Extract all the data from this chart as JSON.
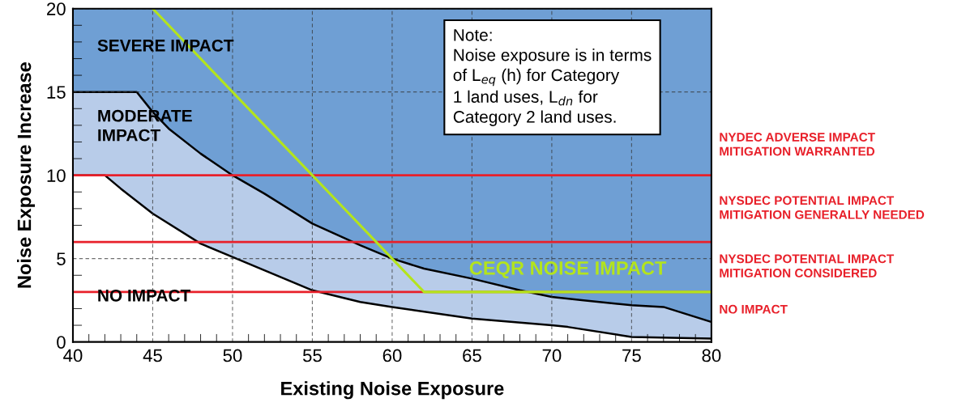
{
  "chart_data": {
    "type": "line",
    "xlabel": "Existing Noise Exposure",
    "ylabel": "Noise Exposure Increase",
    "xlim": [
      40,
      80
    ],
    "ylim": [
      0,
      20
    ],
    "xticks": [
      40,
      45,
      50,
      55,
      60,
      65,
      70,
      75,
      80
    ],
    "yticks": [
      0,
      5,
      10,
      15,
      20
    ],
    "grid": true,
    "series": [
      {
        "type": "area",
        "color": "#ffffff",
        "x": [
          40,
          42,
          43,
          45,
          48,
          50,
          52,
          55,
          58,
          60,
          65,
          70,
          71,
          75,
          80
        ],
        "values": [
          10,
          10,
          9.2,
          7.7,
          5.9,
          5.1,
          4.3,
          3.1,
          2.4,
          2.1,
          1.4,
          1.0,
          0.9,
          0.3,
          0.2
        ]
      },
      {
        "type": "area",
        "color": "#b8cce9",
        "x": [
          40,
          44,
          45,
          46,
          48,
          50,
          52,
          55,
          58,
          60,
          62,
          65,
          68,
          70,
          72,
          75,
          77,
          80
        ],
        "values": [
          15,
          15,
          13.8,
          12.8,
          11.3,
          10.0,
          8.9,
          7.1,
          5.8,
          5.0,
          4.4,
          3.8,
          3.1,
          2.7,
          2.5,
          2.2,
          2.1,
          1.2
        ]
      },
      {
        "name": "CEQR NOISE IMPACT",
        "color": "#b4e41c",
        "x": [
          45,
          62,
          80
        ],
        "values": [
          20,
          3,
          3
        ]
      }
    ],
    "ref_lines": [
      {
        "axis": "y",
        "value": 10,
        "color": "#e8202a"
      },
      {
        "axis": "y",
        "value": 6,
        "color": "#e8202a"
      },
      {
        "axis": "y",
        "value": 3,
        "color": "#e8202a"
      }
    ],
    "annotations": [
      "SEVERE IMPACT",
      "MODERATE\nIMPACT",
      "NO IMPACT",
      "Note:\nNoise exposure is in terms\nof L$_{eq}$ (h) for Category\n1 land uses, L$_{dn}$ for\nCategory 2 land uses.",
      "NYDEC ADVERSE IMPACT\nMITIGATION WARRANTED",
      "NYSDEC POTENTIAL IMPACT\nMITIGATION GENERALLY NEEDED",
      "NYSDEC POTENTIAL IMPACT\nMITIGATION CONSIDERED",
      "NO IMPACT"
    ]
  }
}
